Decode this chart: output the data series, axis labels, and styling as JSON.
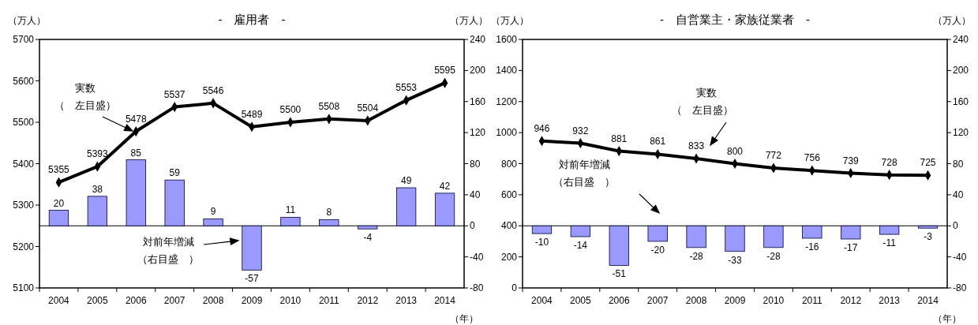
{
  "chart_data": [
    {
      "type": "line",
      "title": "-　雇用者　-",
      "ylabel": "（万人）",
      "y2label": "（万人）",
      "xlabel": "（年）",
      "categories": [
        "2004",
        "2005",
        "2006",
        "2007",
        "2008",
        "2009",
        "2010",
        "2011",
        "2012",
        "2013",
        "2014"
      ],
      "series": [
        {
          "type": "bar",
          "axis": "y2",
          "color": "#9999ff",
          "values": [
            20,
            38,
            85,
            59,
            9,
            -57,
            11,
            8,
            -4,
            49,
            42
          ]
        },
        {
          "color": "#000000",
          "values": [
            5355,
            5393,
            5478,
            5537,
            5546,
            5489,
            5500,
            5508,
            5504,
            5553,
            5595
          ]
        }
      ],
      "ylim": [
        5100,
        5700
      ],
      "yticks": [
        5100,
        5200,
        5300,
        5400,
        5500,
        5600,
        5700
      ],
      "y2lim": [
        -80,
        240
      ],
      "y2ticks": [
        -80,
        -40,
        0,
        40,
        80,
        120,
        160,
        200,
        240
      ],
      "marker": "diamond",
      "data_labels": true,
      "annotations": [
        "実数",
        "（　左目盛）",
        "対前年増減",
        "（右目盛　）"
      ]
    },
    {
      "type": "line",
      "title": "-　自営業主・家族従業者　-",
      "ylabel": "（万人）",
      "y2label": "（万人）",
      "xlabel": "（年）",
      "categories": [
        "2004",
        "2005",
        "2006",
        "2007",
        "2008",
        "2009",
        "2010",
        "2011",
        "2012",
        "2013",
        "2014"
      ],
      "series": [
        {
          "type": "bar",
          "axis": "y2",
          "color": "#9999ff",
          "values": [
            -10,
            -14,
            -51,
            -20,
            -28,
            -33,
            -28,
            -16,
            -17,
            -11,
            -3
          ]
        },
        {
          "color": "#000000",
          "values": [
            946,
            932,
            881,
            861,
            833,
            800,
            772,
            756,
            739,
            728,
            725
          ]
        }
      ],
      "ylim": [
        0,
        1600
      ],
      "yticks": [
        0,
        200,
        400,
        600,
        800,
        1000,
        1200,
        1400,
        1600
      ],
      "y2lim": [
        -80,
        240
      ],
      "y2ticks": [
        -80,
        -40,
        0,
        40,
        80,
        120,
        160,
        200,
        240
      ],
      "marker": "diamond",
      "data_labels": true,
      "annotations": [
        "実数",
        "（　左目盛）",
        "対前年増減",
        "（右目盛　）"
      ]
    }
  ]
}
